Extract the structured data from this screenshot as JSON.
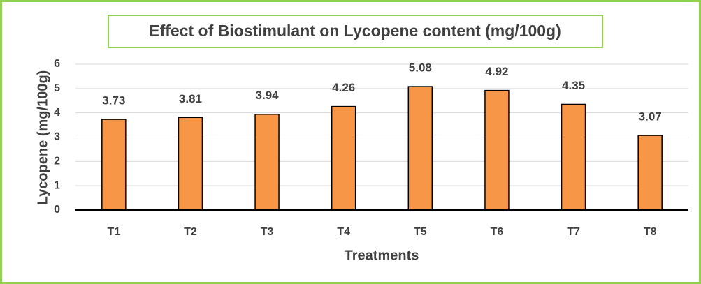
{
  "chart_data": {
    "type": "bar",
    "title": "Effect of Biostimulant on Lycopene content (mg/100g)",
    "x_label": "Treatments",
    "y_label": "Lycopene (mg/100g)",
    "categories": [
      "T1",
      "T2",
      "T3",
      "T4",
      "T5",
      "T6",
      "T7",
      "T8"
    ],
    "values": [
      3.73,
      3.81,
      3.94,
      4.26,
      5.08,
      4.92,
      4.35,
      3.07
    ],
    "color": "#f79646",
    "ylim": [
      0,
      6
    ],
    "yticks": [
      0,
      1,
      2,
      3,
      4,
      5,
      6
    ],
    "grid": true
  }
}
